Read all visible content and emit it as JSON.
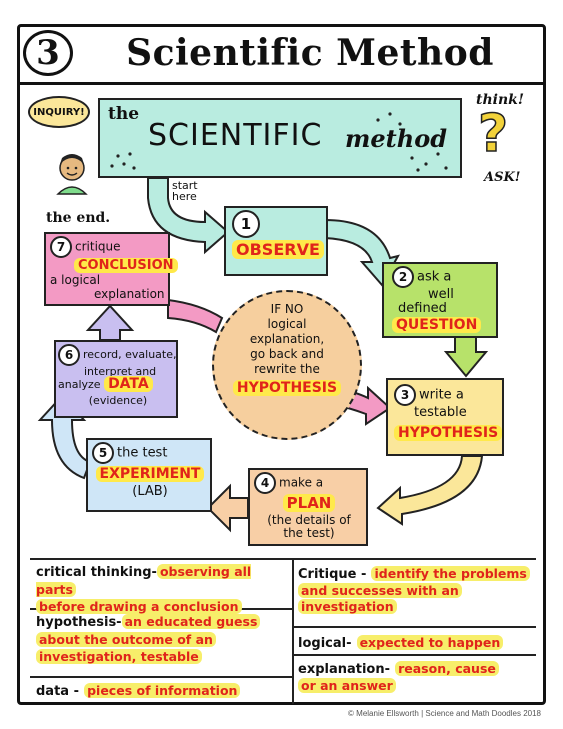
{
  "header": {
    "number": "3",
    "title": "Scientific Method"
  },
  "banner": {
    "the": "the",
    "scientific": "SCIENTIFIC",
    "method": "method"
  },
  "side": {
    "inquiry": "INQUIRY!",
    "think": "think!",
    "ask": "ASK!",
    "start_here_1": "start",
    "start_here_2": "here",
    "the_end": "the end."
  },
  "steps": {
    "s1": {
      "num": "1",
      "label": "OBSERVE"
    },
    "s2": {
      "num": "2",
      "pre1": "ask a",
      "pre2": "well",
      "pre3": "defined",
      "label": "QUESTION"
    },
    "s3": {
      "num": "3",
      "pre1": "write a",
      "pre2": "testable",
      "label": "HYPOTHESIS"
    },
    "s4": {
      "num": "4",
      "pre1": "make a",
      "label": "PLAN",
      "post1": "(the details of",
      "post2": "the test)"
    },
    "s5": {
      "num": "5",
      "pre1": "the test",
      "label": "EXPERIMENT",
      "post1": "(LAB)"
    },
    "s6": {
      "num": "6",
      "pre1": "record, evaluate,",
      "pre2": "interpret and",
      "pre3": "analyze",
      "label": "DATA",
      "post1": "(evidence)"
    },
    "s7": {
      "num": "7",
      "pre1": "critique",
      "label": "CONCLUSION",
      "post1": "a logical",
      "post2": "explanation"
    }
  },
  "center": {
    "l1": "IF NO",
    "l2": "logical",
    "l3": "explanation,",
    "l4": "go back and",
    "l5": "rewrite the",
    "label": "HYPOTHESIS"
  },
  "vocab": {
    "critical_thinking": {
      "term": "critical thinking-",
      "def1": "observing all parts",
      "def2": "before drawing a conclusion"
    },
    "hypothesis": {
      "term": "hypothesis-",
      "def1": "an educated guess",
      "def2": "about the outcome of an",
      "def3": "investigation, testable"
    },
    "data": {
      "term": "data -",
      "def1": "pieces of information"
    },
    "critique": {
      "term": "Critique -",
      "def1": "identify the problems",
      "def2": "and successes with an",
      "def3": "investigation"
    },
    "logical": {
      "term": "logical-",
      "def1": "expected to happen"
    },
    "explanation": {
      "term": "explanation-",
      "def1": "reason, cause",
      "def2": "or an answer"
    }
  },
  "credit": "© Melanie Ellsworth | Science and Math Doodles 2018",
  "colors": {
    "teal": "#b9ece0",
    "pink": "#f39ac4",
    "yellow_box": "#fbe79a",
    "peach": "#f8cfa6",
    "blue": "#cfe6f7",
    "lavender": "#c9bff0",
    "center_circle": "#f6cf9e",
    "highlight": "#ffe94a",
    "red_text": "#e0241b"
  }
}
